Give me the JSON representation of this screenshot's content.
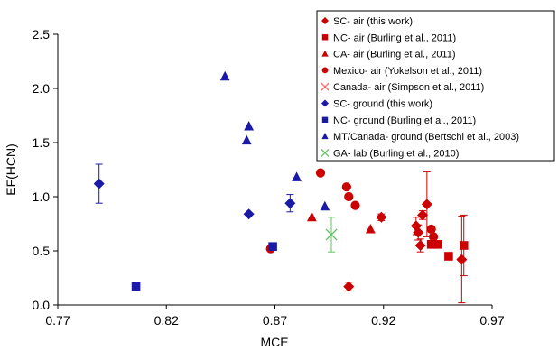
{
  "chart_data": {
    "type": "scatter",
    "xlabel": "MCE",
    "ylabel": "EF(HCN)",
    "xlim": [
      0.77,
      0.97
    ],
    "ylim": [
      0.0,
      2.5
    ],
    "xticks": [
      "0.77",
      "0.82",
      "0.87",
      "0.92",
      "0.97"
    ],
    "yticks": [
      "0.0",
      "0.5",
      "1.0",
      "1.5",
      "2.0",
      "2.5"
    ],
    "grid": false,
    "legend_position": "top-right",
    "series": [
      {
        "name": "SC- air (this work)",
        "marker": "diamond",
        "color": "#cc0000",
        "points": [
          {
            "x": 0.904,
            "y": 0.17,
            "err": 0.04
          },
          {
            "x": 0.919,
            "y": 0.81,
            "err": 0.03
          },
          {
            "x": 0.935,
            "y": 0.73,
            "err": 0.08
          },
          {
            "x": 0.936,
            "y": 0.67,
            "err": 0.07
          },
          {
            "x": 0.937,
            "y": 0.55,
            "err": 0.06
          },
          {
            "x": 0.938,
            "y": 0.83,
            "err": 0.04
          },
          {
            "x": 0.94,
            "y": 0.93,
            "err": 0.3
          },
          {
            "x": 0.956,
            "y": 0.42,
            "err": 0.4
          }
        ]
      },
      {
        "name": "NC- air (Burling et al., 2011)",
        "marker": "square",
        "color": "#cc0000",
        "points": [
          {
            "x": 0.942,
            "y": 0.56
          },
          {
            "x": 0.945,
            "y": 0.56
          },
          {
            "x": 0.95,
            "y": 0.45
          },
          {
            "x": 0.957,
            "y": 0.55,
            "err": 0.28
          }
        ]
      },
      {
        "name": "CA- air (Burling et al., 2011)",
        "marker": "triangle",
        "color": "#cc0000",
        "points": [
          {
            "x": 0.887,
            "y": 0.81
          },
          {
            "x": 0.914,
            "y": 0.7
          }
        ]
      },
      {
        "name": "Mexico- air (Yokelson et al., 2011)",
        "marker": "circle",
        "color": "#cc0000",
        "points": [
          {
            "x": 0.868,
            "y": 0.52
          },
          {
            "x": 0.891,
            "y": 1.22
          },
          {
            "x": 0.903,
            "y": 1.09
          },
          {
            "x": 0.904,
            "y": 1.0
          },
          {
            "x": 0.907,
            "y": 0.92
          },
          {
            "x": 0.942,
            "y": 0.7
          },
          {
            "x": 0.943,
            "y": 0.63
          }
        ]
      },
      {
        "name": "Canada- air (Simpson et al., 2011)",
        "marker": "x",
        "color": "#ff6666",
        "points": []
      },
      {
        "name": "SC- ground (this work)",
        "marker": "diamond",
        "color": "#1a1aa6",
        "points": [
          {
            "x": 0.789,
            "y": 1.12,
            "err": 0.18
          },
          {
            "x": 0.858,
            "y": 0.84
          },
          {
            "x": 0.877,
            "y": 0.94,
            "err": 0.08
          }
        ]
      },
      {
        "name": "NC- ground (Burling et al., 2011)",
        "marker": "square",
        "color": "#1a1aa6",
        "points": [
          {
            "x": 0.806,
            "y": 0.17
          },
          {
            "x": 0.869,
            "y": 0.54
          }
        ]
      },
      {
        "name": "MT/Canada- ground (Bertschi et al., 2003)",
        "marker": "triangle",
        "color": "#1a1aa6",
        "points": [
          {
            "x": 0.847,
            "y": 2.11
          },
          {
            "x": 0.858,
            "y": 1.65
          },
          {
            "x": 0.857,
            "y": 1.52
          },
          {
            "x": 0.88,
            "y": 1.18
          },
          {
            "x": 0.893,
            "y": 0.91
          }
        ]
      },
      {
        "name": "GA- lab (Burling et al., 2010)",
        "marker": "x",
        "color": "#5fc45f",
        "points": [
          {
            "x": 0.896,
            "y": 0.65,
            "err": 0.16
          }
        ]
      }
    ]
  }
}
